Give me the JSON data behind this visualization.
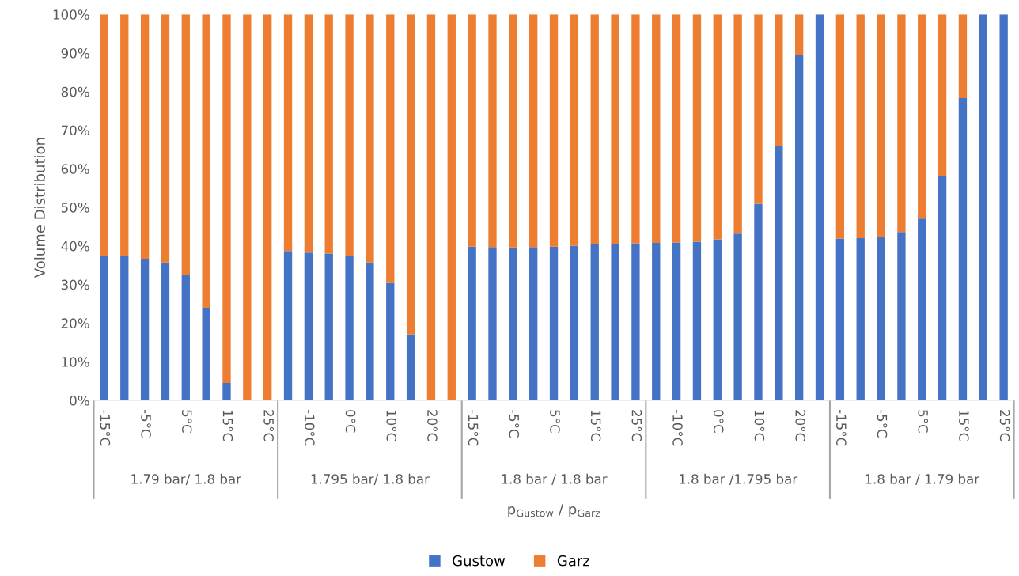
{
  "chart_data": {
    "type": "bar",
    "stacked": true,
    "ylabel": "Volume Distribution",
    "xlabel": "p$_{Gustow}$ / p$_{Garz}$",
    "categories": [
      "-15°C",
      null,
      "-5°C",
      null,
      "5°C",
      null,
      "15°C",
      null,
      "25°C",
      null,
      "-10°C",
      null,
      "0°C",
      null,
      "10°C",
      null,
      "20°C",
      null,
      "-15°C",
      null,
      "-5°C",
      null,
      "5°C",
      null,
      "15°C",
      null,
      "25°C",
      null,
      "-10°C",
      null,
      "0°C",
      null,
      "10°C",
      null,
      "20°C",
      null,
      "-15°C",
      null,
      "-5°C",
      null,
      "5°C",
      null,
      "15°C",
      null,
      "25°C"
    ],
    "series": [
      {
        "name": "Gustow",
        "color": "#4472c4",
        "values": [
          37.5,
          37.3,
          36.7,
          35.7,
          32.6,
          24,
          4.5,
          0,
          0,
          38.7,
          38.3,
          38,
          37.4,
          35.7,
          30.4,
          17.1,
          0,
          0,
          39.8,
          39.7,
          39.6,
          39.7,
          39.8,
          40,
          40.6,
          40.6,
          40.7,
          40.8,
          40.9,
          41.1,
          41.7,
          43.2,
          50.9,
          66,
          89.6,
          100,
          41.9,
          42,
          42.3,
          43.6,
          47.1,
          58.2,
          78.3,
          100,
          100
        ]
      },
      {
        "name": "Garz",
        "color": "#ed7d31",
        "values": [
          62.5,
          62.7,
          63.3,
          64.3,
          67.4,
          76,
          95.5,
          100,
          100,
          61.3,
          61.7,
          62,
          62.6,
          64.3,
          69.6,
          82.9,
          100,
          100,
          60.2,
          60.3,
          60.4,
          60.3,
          60.2,
          60,
          59.4,
          59.4,
          59.3,
          59.2,
          59.1,
          58.9,
          58.3,
          56.8,
          49.1,
          34,
          10.4,
          0,
          58.1,
          58,
          57.7,
          56.4,
          52.9,
          41.8,
          21.7,
          0,
          0
        ]
      }
    ],
    "annotations": [
      "1.79 bar/ 1.8 bar",
      "1.795 bar/ 1.8 bar",
      "1.8 bar / 1.8 bar",
      "1.8 bar /1.795 bar",
      "1.8 bar / 1.79 bar"
    ],
    "ylim": [
      0,
      100
    ],
    "yticks": [
      {
        "value": 0,
        "label": "0%"
      },
      {
        "value": 10,
        "label": "10%"
      },
      {
        "value": 20,
        "label": "20%"
      },
      {
        "value": 30,
        "label": "30%"
      },
      {
        "value": 40,
        "label": "40%"
      },
      {
        "value": 50,
        "label": "50%"
      },
      {
        "value": 60,
        "label": "60%"
      },
      {
        "value": 70,
        "label": "70%"
      },
      {
        "value": 80,
        "label": "80%"
      },
      {
        "value": 90,
        "label": "90%"
      },
      {
        "value": 100,
        "label": "100%"
      }
    ],
    "grid": false,
    "legend": "bottom"
  }
}
